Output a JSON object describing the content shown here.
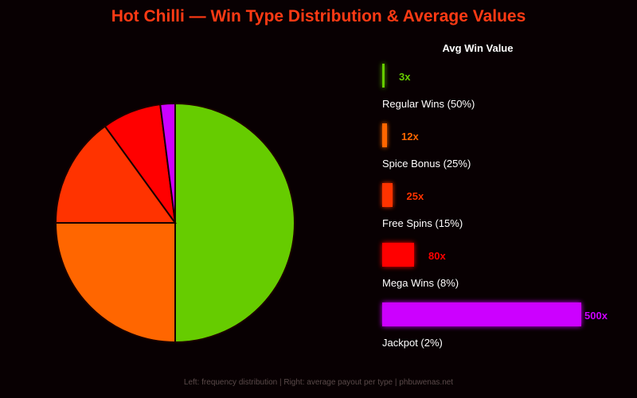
{
  "title": "Hot Chilli — Win Type Distribution & Average Values",
  "footer": "Left: frequency distribution | Right: average payout per type | phbuwenas.net",
  "bars_title": "Avg Win Value",
  "chart_data": [
    {
      "type": "pie",
      "categories": [
        "Regular Wins",
        "Spice Bonus",
        "Free Spins",
        "Mega Wins",
        "Jackpot"
      ],
      "values": [
        50,
        25,
        15,
        8,
        2
      ],
      "colors": [
        "#66cc00",
        "#ff6600",
        "#ff3300",
        "#ff0000",
        "#cc00ff"
      ]
    },
    {
      "type": "bar",
      "categories": [
        "Regular Wins (50%)",
        "Spice Bonus (25%)",
        "Free Spins (15%)",
        "Mega Wins (8%)",
        "Jackpot (2%)"
      ],
      "values": [
        3,
        12,
        25,
        80,
        500
      ],
      "value_labels": [
        "3x",
        "12x",
        "25x",
        "80x",
        "500x"
      ],
      "colors": [
        "#66cc00",
        "#ff6600",
        "#ff3300",
        "#ff0000",
        "#cc00ff"
      ],
      "title": "Avg Win Value",
      "xlim": [
        0,
        500
      ]
    }
  ]
}
